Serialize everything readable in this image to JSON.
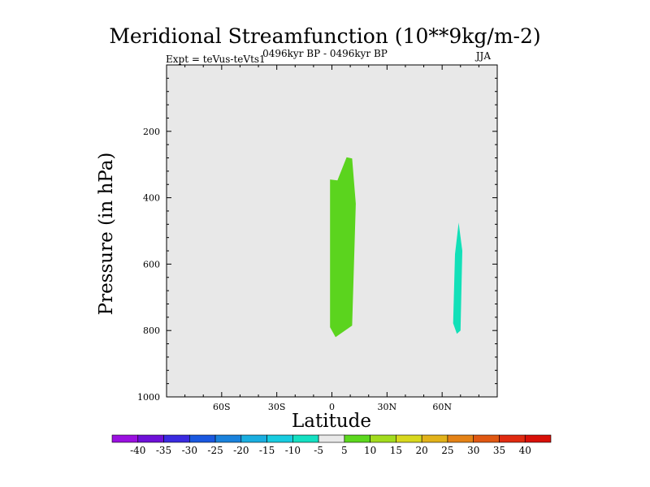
{
  "chart_data": {
    "type": "contour",
    "title": "Meridional Streamfunction (10**9kg/m-2)",
    "subtitle": "0496kyr BP - 0496kyr BP",
    "left_label": "Expt = teVus-teVts1",
    "right_label": "JJA",
    "xlabel": "Latitude",
    "ylabel": "Pressure (in hPa)",
    "xlim": [
      -90,
      90
    ],
    "ylim": [
      1000,
      0
    ],
    "x_ticks": [
      {
        "value": -60,
        "label": "60S"
      },
      {
        "value": -30,
        "label": "30S"
      },
      {
        "value": 0,
        "label": "0"
      },
      {
        "value": 30,
        "label": "30N"
      },
      {
        "value": 60,
        "label": "60N"
      }
    ],
    "y_ticks": [
      {
        "value": 200,
        "label": "200"
      },
      {
        "value": 400,
        "label": "400"
      },
      {
        "value": 600,
        "label": "600"
      },
      {
        "value": 800,
        "label": "800"
      },
      {
        "value": 1000,
        "label": "1000"
      }
    ],
    "background_color": "#e8e8e8",
    "regions": [
      {
        "level_range": "5 to 10",
        "color": "#5bd41e",
        "points": [
          [
            -1,
            790
          ],
          [
            -1,
            345
          ],
          [
            3,
            348
          ],
          [
            8,
            278
          ],
          [
            11,
            282
          ],
          [
            13,
            418
          ],
          [
            11,
            785
          ],
          [
            2,
            820
          ]
        ]
      },
      {
        "level_range": "-10 to -5",
        "color": "#12e0b8",
        "points": [
          [
            66,
            778
          ],
          [
            67,
            570
          ],
          [
            69,
            475
          ],
          [
            71,
            560
          ],
          [
            70,
            800
          ],
          [
            68,
            810
          ]
        ]
      }
    ],
    "colorbar": {
      "labels": [
        "-40",
        "-35",
        "-30",
        "-25",
        "-20",
        "-15",
        "-10",
        "-5",
        "5",
        "10",
        "15",
        "20",
        "25",
        "30",
        "35",
        "40"
      ],
      "colors": [
        "#9a10e0",
        "#6e10d8",
        "#3a2ae0",
        "#1a58e0",
        "#1a82dc",
        "#1aaee0",
        "#18cce0",
        "#14e0c2",
        "#e9e9e9",
        "#5cd81e",
        "#a2dc1e",
        "#d8d81e",
        "#e2b21a",
        "#e48216",
        "#e05812",
        "#e02a10",
        "#d81008"
      ]
    }
  }
}
